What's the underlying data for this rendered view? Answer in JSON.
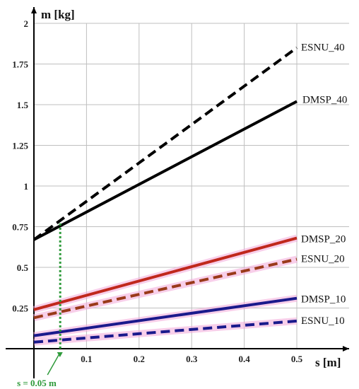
{
  "chart_data": {
    "type": "line",
    "xlabel": "s [m]",
    "ylabel": "m [kg]",
    "xlim": [
      0,
      0.5
    ],
    "ylim": [
      0,
      2
    ],
    "x_ticks": [
      "0.1",
      "0.2",
      "0.3",
      "0.4",
      "0.5"
    ],
    "y_ticks": [
      "0.25",
      "0.5",
      "0.75",
      "1",
      "1.25",
      "1.5",
      "1.75",
      "2"
    ],
    "grid": true,
    "series": [
      {
        "name": "ESNU_40",
        "x": [
          0,
          0.5
        ],
        "y": [
          0.67,
          1.85
        ],
        "color": "#000000",
        "style": "dashed"
      },
      {
        "name": "DMSP_40",
        "x": [
          0,
          0.5
        ],
        "y": [
          0.67,
          1.52
        ],
        "color": "#000000",
        "style": "solid"
      },
      {
        "name": "DMSP_20",
        "x": [
          0,
          0.5
        ],
        "y": [
          0.24,
          0.68
        ],
        "color": "#c0281c",
        "style": "solid"
      },
      {
        "name": "ESNU_20",
        "x": [
          0,
          0.5
        ],
        "y": [
          0.19,
          0.55
        ],
        "color": "#9a3a1a",
        "style": "dashed"
      },
      {
        "name": "DMSP_10",
        "x": [
          0,
          0.5
        ],
        "y": [
          0.08,
          0.31
        ],
        "color": "#1a1a8c",
        "style": "solid"
      },
      {
        "name": "ESNU_10",
        "x": [
          0,
          0.5
        ],
        "y": [
          0.04,
          0.17
        ],
        "color": "#1a1a8c",
        "style": "dashed"
      }
    ],
    "annotation": {
      "text": "s = 0.05 m",
      "x": 0.05,
      "y": 0.77,
      "color": "#2e9a3a"
    }
  }
}
